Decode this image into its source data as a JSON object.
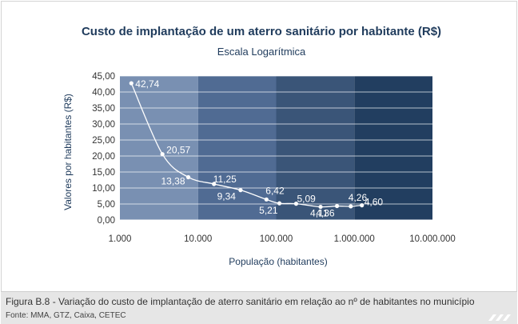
{
  "chart_data": {
    "type": "scatter",
    "title": "Custo de implantação de um aterro sanitário por habitante (R$)",
    "subtitle": "Escala Logarítmica",
    "xlabel": "População (habitantes)",
    "ylabel": "Valores por habitantes (R$)",
    "xscale": "log",
    "xlim": [
      1000,
      10000000
    ],
    "ylim": [
      0,
      45
    ],
    "x_ticks": [
      "1.000",
      "10.000",
      "100.000",
      "1.000.000",
      "10.000.000"
    ],
    "y_ticks": [
      "0,00",
      "5,00",
      "10,00",
      "15,00",
      "20,00",
      "25,00",
      "30,00",
      "35,00",
      "40,00",
      "45,00"
    ],
    "grid": true,
    "legend": "none",
    "series": [
      {
        "x": [
          1400,
          3500,
          7500,
          16000,
          35000,
          75000,
          110000,
          180000,
          370000,
          600000,
          900000,
          1250000
        ],
        "y": [
          42.74,
          20.57,
          13.38,
          11.25,
          9.34,
          6.42,
          5.21,
          5.09,
          4.11,
          4.36,
          4.26,
          4.6
        ],
        "labels": [
          "42,74",
          "20,57",
          "13,38",
          "11,25",
          "9,34",
          "6,42",
          "5,21",
          "5,09",
          "4,11",
          "4,36",
          "4,26",
          "4,60"
        ]
      }
    ]
  },
  "caption": {
    "main": "Figura B.8 - Variação do custo de implantação de aterro sanitário em relação ao nº de habitantes no município",
    "source": "Fonte: MMA, GTZ, Caixa, CETEC"
  },
  "colors": {
    "title": "#1f3b5c",
    "band_1": "#7990b2",
    "band_2": "#506b93",
    "band_3": "#3a5578",
    "band_4": "#223e60",
    "curve": "#ffffff",
    "axis_text": "#333333"
  }
}
